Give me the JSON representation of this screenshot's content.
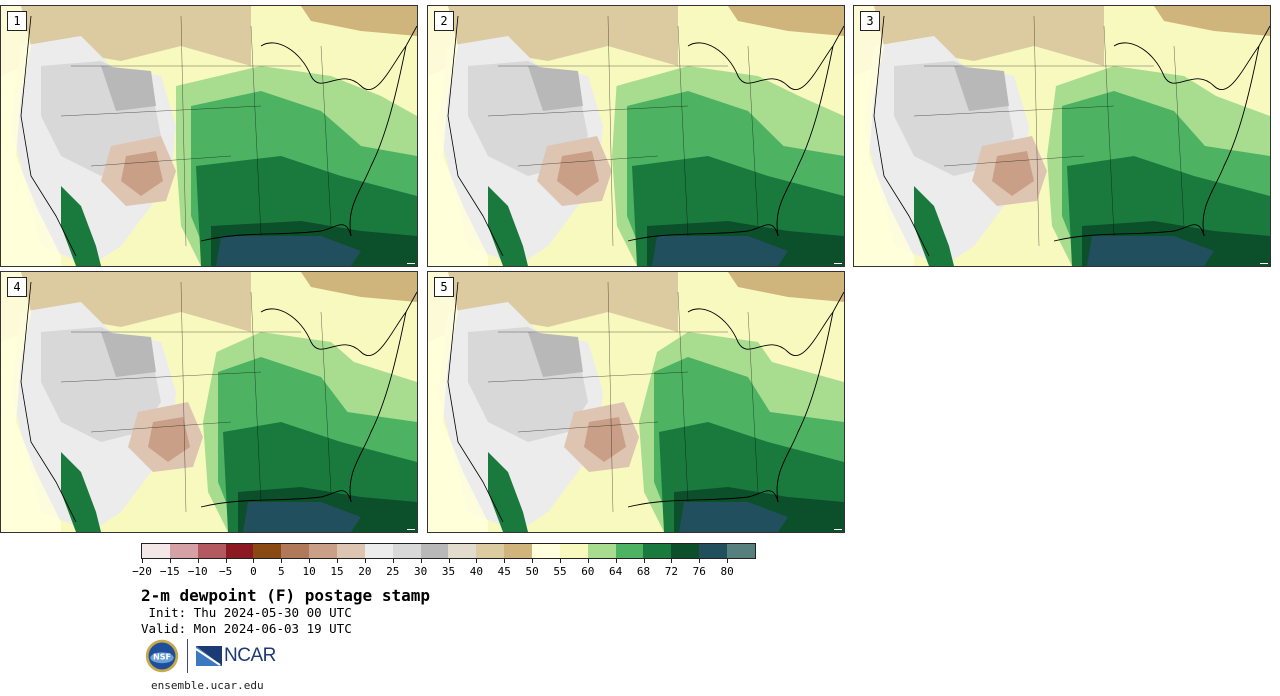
{
  "panels": [
    {
      "label": "1",
      "variant": 0
    },
    {
      "label": "2",
      "variant": 1
    },
    {
      "label": "3",
      "variant": 2
    },
    {
      "label": "4",
      "variant": 3
    },
    {
      "label": "5",
      "variant": 4
    }
  ],
  "colorbar": {
    "colors": [
      "#f4e7e7",
      "#d5a1a5",
      "#b35a60",
      "#8c1a22",
      "#8a4a14",
      "#b07a5a",
      "#c9a087",
      "#dec5b2",
      "#ececec",
      "#d8d8d8",
      "#b8b8b8",
      "#e2dccd",
      "#dccba0",
      "#cfb57c",
      "#ffffdd",
      "#f8f9bf",
      "#a8dd90",
      "#4db362",
      "#1a7a3e",
      "#0b4f2b",
      "#214f5d",
      "#55807e"
    ],
    "tick_labels": [
      "−20",
      "−15",
      "−10",
      "−5",
      "0",
      "5",
      "10",
      "15",
      "20",
      "25",
      "30",
      "35",
      "40",
      "45",
      "50",
      "55",
      "60",
      "64",
      "68",
      "72",
      "76",
      "80"
    ]
  },
  "title": "2-m dewpoint (F) postage stamp",
  "init": " Init: Thu 2024-05-30 00 UTC",
  "valid": "Valid: Mon 2024-06-03 19 UTC",
  "logos": {
    "nsf": "NSF",
    "ncar": "NCAR"
  },
  "footer_url": "ensemble.ucar.edu"
}
